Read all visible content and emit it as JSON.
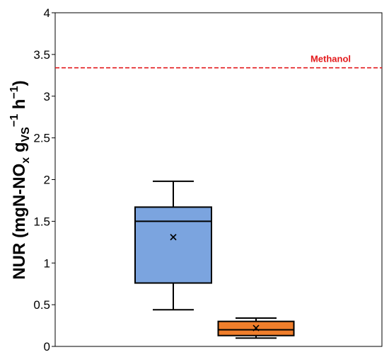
{
  "chart_data": {
    "type": "box",
    "title": "",
    "xlabel": "",
    "ylabel": {
      "main": "NUR (mgN-NO",
      "sub_x": "x",
      "g": " g",
      "sub_vs": "VS",
      "sup1": "−1",
      "h": " h",
      "sup2": "−1",
      "close": ")"
    },
    "ylim": [
      0,
      4
    ],
    "yticks": [
      0,
      0.5,
      1,
      1.5,
      2,
      2.5,
      3,
      3.5,
      4
    ],
    "ytick_labels": [
      "0",
      "0.5",
      "1",
      "1.5",
      "2",
      "2.5",
      "3",
      "3.5",
      "4"
    ],
    "grid": false,
    "boxes": [
      {
        "color": "#7ba4df",
        "whisker_low": 0.44,
        "q1": 0.76,
        "median": 1.5,
        "q3": 1.67,
        "whisker_high": 1.98,
        "mean": 1.31
      },
      {
        "color": "#f07e2b",
        "whisker_low": 0.1,
        "q1": 0.13,
        "median": 0.2,
        "q3": 0.3,
        "whisker_high": 0.34,
        "mean": 0.22
      }
    ],
    "mean_marker": "x",
    "reference_line": {
      "value": 3.34,
      "label": "Methanol",
      "color": "#e31a1c",
      "style": "dashed"
    }
  }
}
